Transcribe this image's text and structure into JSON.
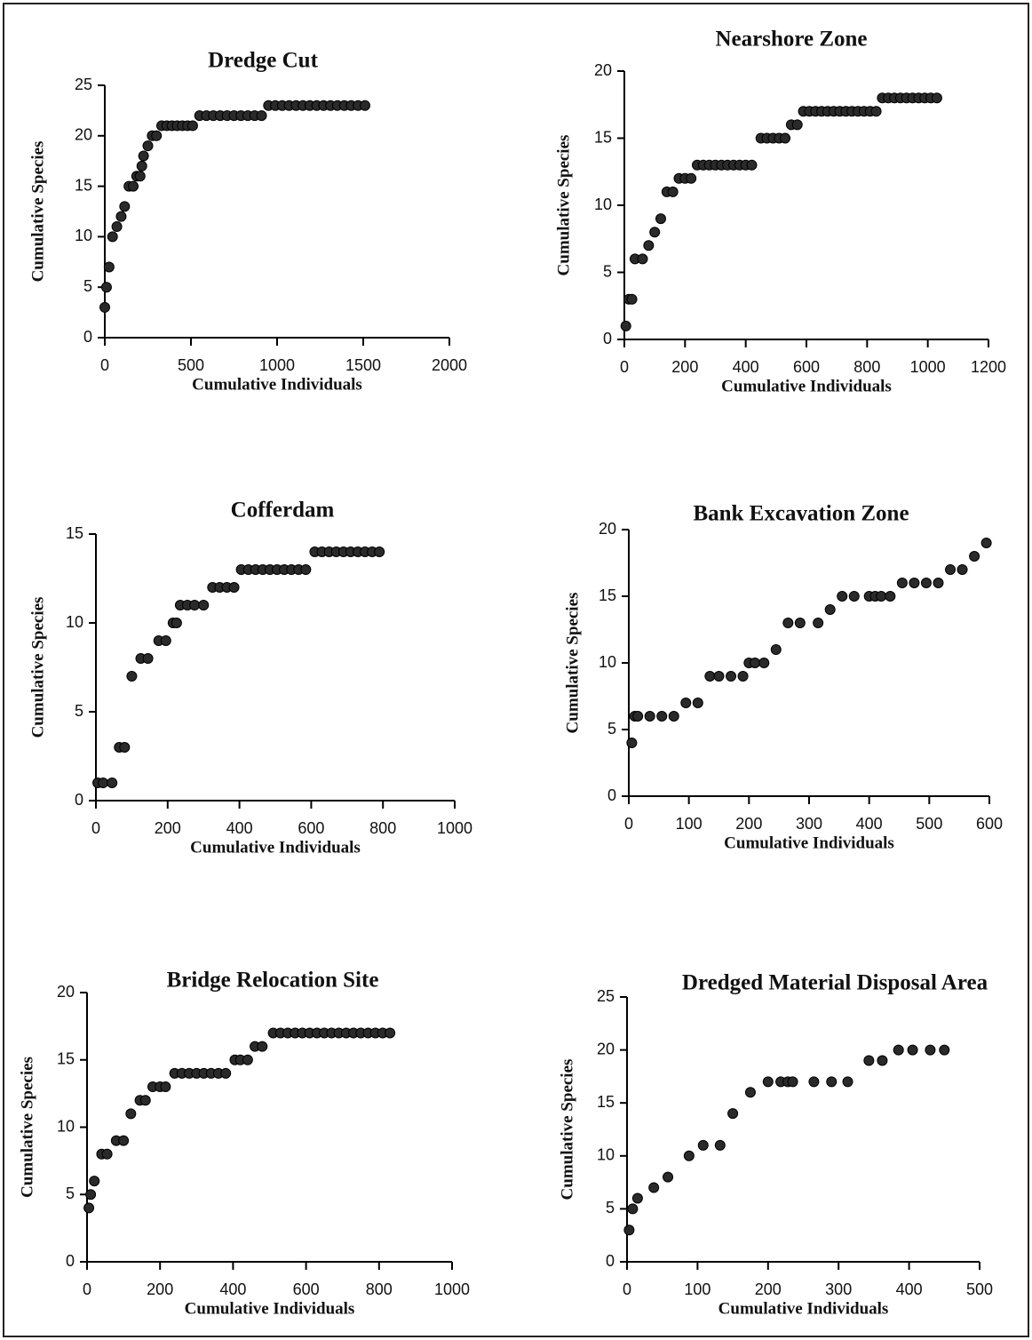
{
  "chart_data": [
    {
      "type": "scatter",
      "title": "Dredge Cut",
      "x_label": "Cumulative Individuals",
      "y_label": "Cumulative Species",
      "color": "#2a2a2a",
      "x": [
        0,
        10,
        25,
        45,
        70,
        95,
        115,
        140,
        165,
        185,
        205,
        215,
        225,
        250,
        275,
        300,
        330,
        360,
        390,
        420,
        450,
        480,
        510,
        550,
        590,
        630,
        670,
        710,
        750,
        790,
        830,
        870,
        910,
        950,
        990,
        1030,
        1070,
        1110,
        1150,
        1190,
        1230,
        1270,
        1310,
        1350,
        1390,
        1430,
        1470,
        1510
      ],
      "values": [
        3,
        5,
        7,
        10,
        11,
        12,
        13,
        15,
        15,
        16,
        16,
        17,
        18,
        19,
        20,
        20,
        21,
        21,
        21,
        21,
        21,
        21,
        21,
        22,
        22,
        22,
        22,
        22,
        22,
        22,
        22,
        22,
        22,
        23,
        23,
        23,
        23,
        23,
        23,
        23,
        23,
        23,
        23,
        23,
        23,
        23,
        23,
        23
      ],
      "xlim": [
        0,
        2000
      ],
      "ylim": [
        0,
        25
      ],
      "xticks": [
        0,
        500,
        1000,
        1500,
        2000
      ],
      "yticks": [
        0,
        5,
        10,
        15,
        20,
        25
      ]
    },
    {
      "type": "scatter",
      "title": "Nearshore Zone",
      "x_label": "Cumulative Individuals",
      "y_label": "Cumulative Species",
      "color": "#2a2a2a",
      "x": [
        5,
        15,
        25,
        35,
        60,
        80,
        100,
        120,
        140,
        160,
        180,
        200,
        220,
        240,
        260,
        280,
        300,
        320,
        340,
        360,
        380,
        400,
        420,
        450,
        470,
        490,
        510,
        530,
        550,
        570,
        590,
        610,
        630,
        650,
        670,
        690,
        710,
        730,
        750,
        770,
        790,
        810,
        830,
        850,
        870,
        890,
        910,
        930,
        950,
        970,
        990,
        1010,
        1030
      ],
      "values": [
        1,
        3,
        3,
        6,
        6,
        7,
        8,
        9,
        11,
        11,
        12,
        12,
        12,
        13,
        13,
        13,
        13,
        13,
        13,
        13,
        13,
        13,
        13,
        15,
        15,
        15,
        15,
        15,
        16,
        16,
        17,
        17,
        17,
        17,
        17,
        17,
        17,
        17,
        17,
        17,
        17,
        17,
        17,
        18,
        18,
        18,
        18,
        18,
        18,
        18,
        18,
        18,
        18
      ],
      "xlim": [
        0,
        1200
      ],
      "ylim": [
        0,
        20
      ],
      "xticks": [
        0,
        200,
        400,
        600,
        800,
        1000,
        1200
      ],
      "yticks": [
        0,
        5,
        10,
        15,
        20
      ]
    },
    {
      "type": "scatter",
      "title": "Cofferdam",
      "x_label": "Cumulative Individuals",
      "y_label": "Cumulative Species",
      "color": "#2a2a2a",
      "x": [
        5,
        20,
        45,
        65,
        80,
        100,
        125,
        145,
        175,
        195,
        215,
        225,
        235,
        255,
        275,
        300,
        325,
        345,
        365,
        385,
        405,
        425,
        445,
        465,
        485,
        505,
        525,
        545,
        565,
        585,
        610,
        630,
        650,
        670,
        690,
        710,
        730,
        750,
        770,
        790
      ],
      "values": [
        1,
        1,
        1,
        3,
        3,
        7,
        8,
        8,
        9,
        9,
        10,
        10,
        11,
        11,
        11,
        11,
        12,
        12,
        12,
        12,
        13,
        13,
        13,
        13,
        13,
        13,
        13,
        13,
        13,
        13,
        14,
        14,
        14,
        14,
        14,
        14,
        14,
        14,
        14,
        14
      ],
      "xlim": [
        0,
        1000
      ],
      "ylim": [
        0,
        15
      ],
      "xticks": [
        0,
        200,
        400,
        600,
        800,
        1000
      ],
      "yticks": [
        0,
        5,
        10,
        15
      ]
    },
    {
      "type": "scatter",
      "title": "Bank Excavation Zone",
      "x_label": "Cumulative Individuals",
      "y_label": "Cumulative Species",
      "color": "#2a2a2a",
      "x": [
        5,
        10,
        15,
        35,
        55,
        75,
        95,
        115,
        135,
        150,
        170,
        190,
        200,
        210,
        225,
        245,
        265,
        285,
        315,
        335,
        355,
        375,
        400,
        410,
        420,
        435,
        455,
        475,
        495,
        515,
        535,
        555,
        575,
        595
      ],
      "values": [
        4,
        6,
        6,
        6,
        6,
        6,
        7,
        7,
        9,
        9,
        9,
        9,
        10,
        10,
        10,
        11,
        13,
        13,
        13,
        14,
        15,
        15,
        15,
        15,
        15,
        15,
        16,
        16,
        16,
        16,
        17,
        17,
        18,
        19
      ],
      "xlim": [
        0,
        600
      ],
      "ylim": [
        0,
        20
      ],
      "xticks": [
        0,
        100,
        200,
        300,
        400,
        500,
        600
      ],
      "yticks": [
        0,
        5,
        10,
        15,
        20
      ]
    },
    {
      "type": "scatter",
      "title": "Bridge Relocation Site",
      "x_label": "Cumulative Individuals",
      "y_label": "Cumulative Species",
      "color": "#2a2a2a",
      "x": [
        5,
        10,
        20,
        40,
        55,
        80,
        100,
        120,
        145,
        160,
        180,
        200,
        215,
        240,
        260,
        280,
        300,
        320,
        340,
        360,
        380,
        405,
        420,
        440,
        460,
        480,
        510,
        530,
        550,
        570,
        590,
        610,
        630,
        650,
        670,
        690,
        710,
        730,
        750,
        770,
        790,
        810,
        830
      ],
      "values": [
        4,
        5,
        6,
        8,
        8,
        9,
        9,
        11,
        12,
        12,
        13,
        13,
        13,
        14,
        14,
        14,
        14,
        14,
        14,
        14,
        14,
        15,
        15,
        15,
        16,
        16,
        17,
        17,
        17,
        17,
        17,
        17,
        17,
        17,
        17,
        17,
        17,
        17,
        17,
        17,
        17,
        17,
        17
      ],
      "xlim": [
        0,
        1000
      ],
      "ylim": [
        0,
        20
      ],
      "xticks": [
        0,
        200,
        400,
        600,
        800,
        1000
      ],
      "yticks": [
        0,
        5,
        10,
        15,
        20
      ]
    },
    {
      "type": "scatter",
      "title": "Dredged Material Disposal Area",
      "x_label": "Cumulative Individuals",
      "y_label": "Cumulative Species",
      "color": "#2a2a2a",
      "x": [
        3,
        8,
        15,
        38,
        58,
        88,
        108,
        132,
        150,
        175,
        200,
        218,
        228,
        235,
        265,
        290,
        313,
        343,
        362,
        385,
        405,
        430,
        450
      ],
      "values": [
        3,
        5,
        6,
        7,
        8,
        10,
        11,
        11,
        14,
        16,
        17,
        17,
        17,
        17,
        17,
        17,
        17,
        19,
        19,
        20,
        20,
        20,
        20
      ],
      "xlim": [
        0,
        500
      ],
      "ylim": [
        0,
        25
      ],
      "xticks": [
        0,
        100,
        200,
        300,
        400,
        500
      ],
      "yticks": [
        0,
        5,
        10,
        15,
        20,
        25
      ]
    }
  ]
}
